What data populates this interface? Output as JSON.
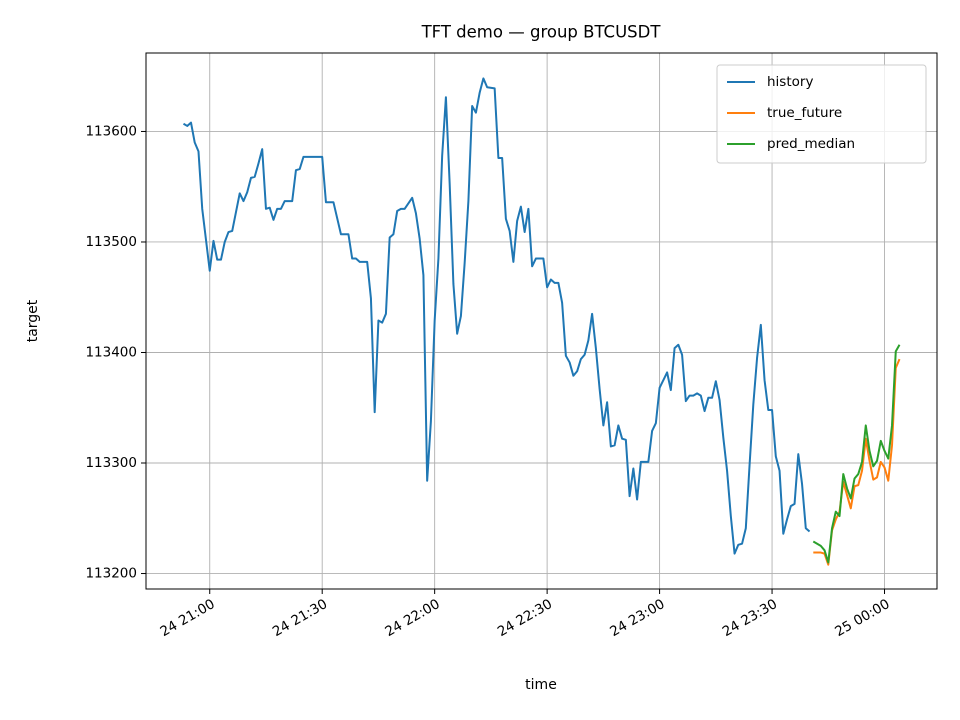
{
  "chart_data": {
    "type": "line",
    "title": "TFT demo — group BTCUSDT",
    "xlabel": "time",
    "ylabel": "target",
    "xlim": [
      "24 20:43",
      "25 00:14"
    ],
    "xticks": [
      "24 21:00",
      "24 21:30",
      "24 22:00",
      "24 22:30",
      "24 23:00",
      "24 23:30",
      "25 00:00"
    ],
    "ylim": [
      113186,
      113671
    ],
    "yticks": [
      113200,
      113300,
      113400,
      113500,
      113600
    ],
    "grid": true,
    "legend": "upper right",
    "series": [
      {
        "name": "history",
        "color": "#1f77b4",
        "x": [
          "24 20:53",
          "24 20:54",
          "24 20:55",
          "24 20:56",
          "24 20:57",
          "24 20:58",
          "24 21:00",
          "24 21:01",
          "24 21:02",
          "24 21:03",
          "24 21:04",
          "24 21:05",
          "24 21:06",
          "24 21:08",
          "24 21:09",
          "24 21:10",
          "24 21:11",
          "24 21:12",
          "24 21:13",
          "24 21:14",
          "24 21:15",
          "24 21:16",
          "24 21:17",
          "24 21:18",
          "24 21:19",
          "24 21:20",
          "24 21:22",
          "24 21:23",
          "24 21:24",
          "24 21:25",
          "24 21:30",
          "24 21:31",
          "24 21:33",
          "24 21:35",
          "24 21:37",
          "24 21:38",
          "24 21:39",
          "24 21:40",
          "24 21:42",
          "24 21:43",
          "24 21:44",
          "24 21:45",
          "24 21:46",
          "24 21:47",
          "24 21:48",
          "24 21:49",
          "24 21:50",
          "24 21:51",
          "24 21:52",
          "24 21:53",
          "24 21:54",
          "24 21:55",
          "24 21:56",
          "24 21:57",
          "24 21:58",
          "24 21:59",
          "24 22:00",
          "24 22:01",
          "24 22:02",
          "24 22:03",
          "24 22:04",
          "24 22:05",
          "24 22:06",
          "24 22:07",
          "24 22:08",
          "24 22:09",
          "24 22:10",
          "24 22:11",
          "24 22:12",
          "24 22:13",
          "24 22:14",
          "24 22:16",
          "24 22:17",
          "24 22:18",
          "24 22:19",
          "24 22:20",
          "24 22:21",
          "24 22:22",
          "24 22:23",
          "24 22:24",
          "24 22:25",
          "24 22:26",
          "24 22:27",
          "24 22:29",
          "24 22:30",
          "24 22:31",
          "24 22:32",
          "24 22:33",
          "24 22:34",
          "24 22:35",
          "24 22:36",
          "24 22:37",
          "24 22:38",
          "24 22:39",
          "24 22:40",
          "24 22:41",
          "24 22:42",
          "24 22:43",
          "24 22:44",
          "24 22:45",
          "24 22:46",
          "24 22:47",
          "24 22:48",
          "24 22:49",
          "24 22:50",
          "24 22:51",
          "24 22:52",
          "24 22:53",
          "24 22:54",
          "24 22:55",
          "24 22:57",
          "24 22:58",
          "24 22:59",
          "24 23:00",
          "24 23:01",
          "24 23:02",
          "24 23:03",
          "24 23:04",
          "24 23:05",
          "24 23:06",
          "24 23:07",
          "24 23:08",
          "24 23:09",
          "24 23:10",
          "24 23:11",
          "24 23:12",
          "24 23:13",
          "24 23:14",
          "24 23:15",
          "24 23:16",
          "24 23:17",
          "24 23:18",
          "24 23:19",
          "24 23:20",
          "24 23:21",
          "24 23:22",
          "24 23:23",
          "24 23:24",
          "24 23:25",
          "24 23:26",
          "24 23:27",
          "24 23:28",
          "24 23:29",
          "24 23:30",
          "24 23:31",
          "24 23:32",
          "24 23:33",
          "24 23:34",
          "24 23:35",
          "24 23:36",
          "24 23:37",
          "24 23:38",
          "24 23:39",
          "24 23:40"
        ],
        "values": [
          113607,
          113605,
          113608,
          113590,
          113582,
          113530,
          113474,
          113501,
          113484,
          113484,
          113500,
          113509,
          113510,
          113544,
          113537,
          113545,
          113558,
          113559,
          113571,
          113584,
          113530,
          113531,
          113520,
          113530,
          113530,
          113537,
          113537,
          113565,
          113566,
          113577,
          113577,
          113536,
          113536,
          113507,
          113507,
          113485,
          113485,
          113482,
          113482,
          113449,
          113346,
          113429,
          113427,
          113435,
          113504,
          113507,
          113528,
          113530,
          113530,
          113535,
          113540,
          113526,
          113503,
          113470,
          113284,
          113338,
          113429,
          113485,
          113578,
          113631,
          113553,
          113462,
          113417,
          113433,
          113481,
          113537,
          113623,
          113617,
          113635,
          113648,
          113640,
          113639,
          113576,
          113576,
          113521,
          113510,
          113482,
          113519,
          113532,
          113509,
          113530,
          113478,
          113485,
          113485,
          113459,
          113466,
          113463,
          113463,
          113445,
          113397,
          113391,
          113379,
          113383,
          113394,
          113398,
          113411,
          113435,
          113404,
          113367,
          113334,
          113355,
          113315,
          113316,
          113334,
          113322,
          113321,
          113270,
          113295,
          113267,
          113301,
          113301,
          113329,
          113336,
          113368,
          113375,
          113382,
          113366,
          113404,
          113407,
          113398,
          113356,
          113361,
          113361,
          113363,
          113361,
          113347,
          113359,
          113359,
          113374,
          113357,
          113323,
          113293,
          113252,
          113218,
          113226,
          113227,
          113241,
          113298,
          113353,
          113395,
          113425,
          113375,
          113348,
          113348,
          113306,
          113293,
          113236,
          113249,
          113261,
          113263,
          113308,
          113281,
          113241,
          113238
        ]
      },
      {
        "name": "true_future",
        "color": "#ff7f0e",
        "x": [
          "24 23:41",
          "24 23:43",
          "24 23:44",
          "24 23:45",
          "24 23:46",
          "24 23:47",
          "24 23:48",
          "24 23:49",
          "24 23:50",
          "24 23:51",
          "24 23:52",
          "24 23:53",
          "24 23:54",
          "24 23:55",
          "24 23:56",
          "24 23:57",
          "24 23:58",
          "24 23:59",
          "25 00:00",
          "25 00:01",
          "25 00:02",
          "25 00:03",
          "25 00:04"
        ],
        "values": [
          113219,
          113219,
          113218,
          113208,
          113239,
          113249,
          113256,
          113283,
          113271,
          113259,
          113279,
          113280,
          113293,
          113322,
          113302,
          113285,
          113287,
          113301,
          113296,
          113284,
          113316,
          113386,
          113394
        ]
      },
      {
        "name": "pred_median",
        "color": "#2ca02c",
        "x": [
          "24 23:41",
          "24 23:43",
          "24 23:44",
          "24 23:45",
          "24 23:46",
          "24 23:47",
          "24 23:48",
          "24 23:49",
          "24 23:50",
          "24 23:51",
          "24 23:52",
          "24 23:53",
          "24 23:54",
          "24 23:55",
          "24 23:56",
          "24 23:57",
          "24 23:58",
          "24 23:59",
          "25 00:00",
          "25 00:01",
          "25 00:02",
          "25 00:03",
          "25 00:04"
        ],
        "values": [
          113229,
          113225,
          113221,
          113210,
          113241,
          113256,
          113252,
          113290,
          113277,
          113268,
          113286,
          113290,
          113301,
          113334,
          113311,
          113297,
          113302,
          113320,
          113311,
          113304,
          113334,
          113401,
          113407
        ]
      }
    ]
  }
}
